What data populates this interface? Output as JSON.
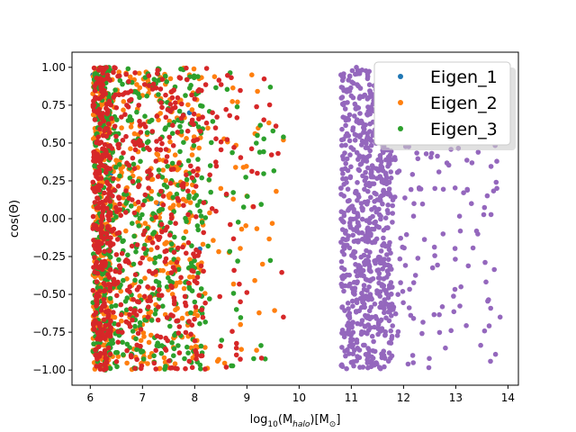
{
  "chart_data": {
    "type": "scatter",
    "title": "",
    "xlabel_base": "log",
    "xlabel_sub": "10",
    "xlabel_mid": "(M",
    "xlabel_msub": "halo",
    "xlabel_mid2": ")[M",
    "xlabel_sun": "⊙",
    "xlabel_end": "]",
    "ylabel": "cos(Θ)",
    "xlim": [
      5.65,
      14.2
    ],
    "ylim": [
      -1.1,
      1.1
    ],
    "xticks": [
      6,
      7,
      8,
      9,
      10,
      11,
      12,
      13,
      14
    ],
    "xtick_labels": [
      "6",
      "7",
      "8",
      "9",
      "10",
      "11",
      "12",
      "13",
      "14"
    ],
    "yticks": [
      -1.0,
      -0.75,
      -0.5,
      -0.25,
      0.0,
      0.25,
      0.5,
      0.75,
      1.0
    ],
    "ytick_labels": [
      "−1.00",
      "−0.75",
      "−0.50",
      "−0.25",
      "0.00",
      "0.25",
      "0.50",
      "0.75",
      "1.00"
    ],
    "grid": false,
    "legend_position": "top-right",
    "series": [
      {
        "name": "Eigen_1",
        "color": "#1f77b4",
        "x": [
          6.05,
          6.2,
          6.4,
          6.8,
          7.3,
          7.9,
          8.1
        ],
        "y": [
          0.95,
          -0.6,
          0.3,
          -0.9,
          0.1,
          0.7,
          -0.2
        ]
      },
      {
        "name": "Eigen_2",
        "color": "#ff7f0e",
        "x": [
          6.1,
          6.3,
          6.6,
          7.0,
          7.5,
          7.9,
          8.2,
          8.5,
          9.0,
          9.3,
          9.7
        ],
        "y": [
          0.8,
          -0.3,
          0.6,
          -0.7,
          0.45,
          0.95,
          -0.85,
          0.2,
          0.15,
          -0.3,
          0.52
        ],
        "count": 600
      },
      {
        "name": "Eigen_3",
        "color": "#2ca02c",
        "x": [
          6.1,
          6.4,
          6.8,
          7.2,
          7.7,
          8.0,
          8.3,
          8.8,
          9.2,
          9.5,
          9.7
        ],
        "y": [
          0.5,
          -0.8,
          0.9,
          -0.1,
          0.65,
          -0.55,
          0.35,
          -0.6,
          0.55,
          0.58,
          0.54
        ],
        "count": 600
      },
      {
        "name": "",
        "color": "#d62728",
        "x": [
          6.05,
          6.3,
          6.7,
          7.1,
          7.6,
          8.0,
          8.4,
          8.8,
          9.2,
          9.7
        ],
        "y": [
          0.2,
          -0.95,
          0.75,
          -0.45,
          0.85,
          -0.25,
          0.6,
          -0.9,
          0.3,
          -0.65
        ],
        "count": 700
      },
      {
        "name": "",
        "color": "#9467bd",
        "x": [
          10.8,
          11.0,
          11.4,
          11.8,
          12.2,
          12.6,
          13.1,
          13.3,
          13.85
        ],
        "y": [
          0.95,
          -0.95,
          0.35,
          -0.6,
          0.1,
          0.2,
          -0.45,
          0.1,
          -0.65
        ],
        "count": 900
      }
    ]
  }
}
